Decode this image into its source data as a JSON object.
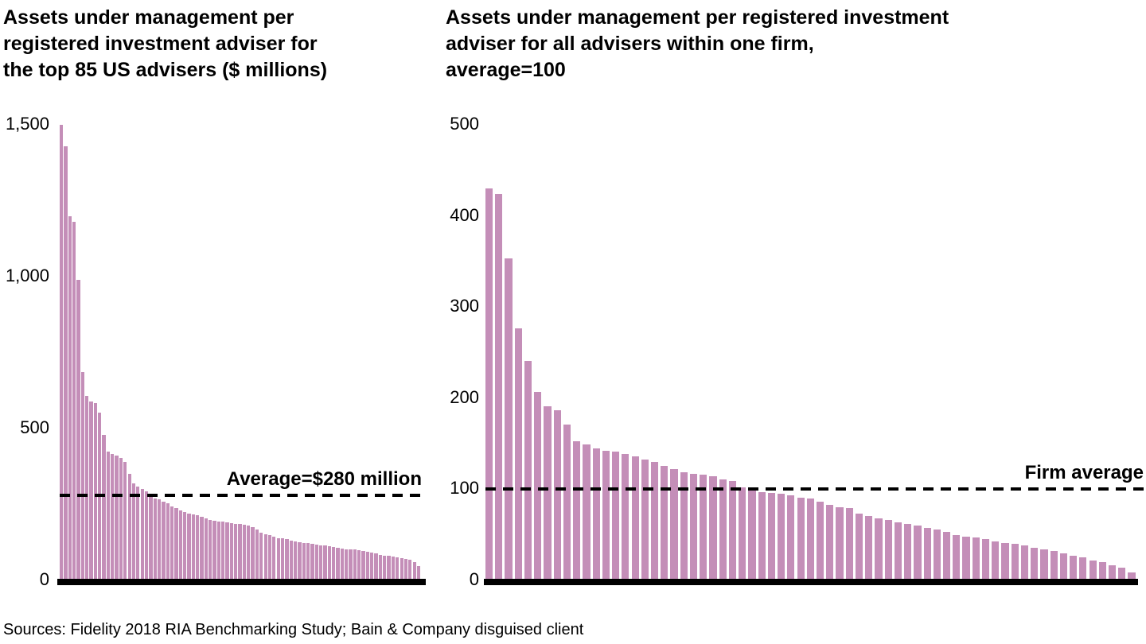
{
  "page": {
    "background": "#ffffff",
    "text_color": "#000000"
  },
  "source_note": "Sources: Fidelity 2018 RIA Benchmarking Study; Bain & Company disguised client",
  "chart_data": [
    {
      "type": "bar",
      "title_lines": [
        "Assets under management per",
        "registered investment adviser for",
        "the top 85 US advisers ($ millions)"
      ],
      "xlabel": "",
      "ylabel": "",
      "ylim": [
        0,
        1500
      ],
      "grid": false,
      "legend": "none",
      "yticks": [
        {
          "label": "1,500",
          "value": 1500
        },
        {
          "label": "1,000",
          "value": 1000
        },
        {
          "label": "500",
          "value": 500
        },
        {
          "label": "0",
          "value": 0
        }
      ],
      "average_line": {
        "value": 280,
        "label": "Average=$280 million",
        "style": "dashed",
        "color": "#000000"
      },
      "bar_color": "#c48eb8",
      "axis_color": "#000000",
      "values": [
        1500,
        1430,
        1200,
        1180,
        990,
        685,
        608,
        588,
        584,
        552,
        478,
        425,
        417,
        410,
        402,
        390,
        350,
        320,
        308,
        300,
        292,
        286,
        270,
        266,
        260,
        253,
        243,
        239,
        230,
        226,
        221,
        217,
        214,
        209,
        204,
        200,
        197,
        195,
        193,
        191,
        189,
        187,
        185,
        183,
        180,
        175,
        168,
        157,
        153,
        149,
        144,
        140,
        139,
        136,
        131,
        128,
        127,
        124,
        123,
        120,
        118,
        116,
        114,
        113,
        110,
        107,
        105,
        103,
        102,
        101,
        100,
        97,
        93,
        91,
        88,
        85,
        82,
        80,
        78,
        76,
        73,
        70,
        67,
        60,
        47
      ]
    },
    {
      "type": "bar",
      "title_lines": [
        "Assets under management per registered investment",
        "adviser for all advisers within one firm,",
        "average=100"
      ],
      "xlabel": "",
      "ylabel": "",
      "ylim": [
        0,
        500
      ],
      "grid": false,
      "legend": "none",
      "yticks": [
        {
          "label": "500",
          "value": 500
        },
        {
          "label": "400",
          "value": 400
        },
        {
          "label": "300",
          "value": 300
        },
        {
          "label": "200",
          "value": 200
        },
        {
          "label": "100",
          "value": 100
        },
        {
          "label": "0",
          "value": 0
        }
      ],
      "average_line": {
        "value": 100,
        "label": "Firm average",
        "style": "dashed",
        "color": "#000000"
      },
      "bar_color": "#c48eb8",
      "axis_color": "#000000",
      "values": [
        430,
        424,
        353,
        277,
        241,
        207,
        191,
        187,
        171,
        153,
        149,
        145,
        142,
        141,
        139,
        136,
        133,
        130,
        126,
        122,
        119,
        117,
        116,
        114,
        111,
        109,
        102,
        100,
        97,
        96,
        95,
        93,
        91,
        90,
        86,
        83,
        80,
        79,
        73,
        71,
        68,
        66,
        64,
        62,
        60,
        58,
        56,
        53,
        50,
        48,
        47,
        45,
        43,
        41,
        40,
        38,
        36,
        34,
        32,
        30,
        27,
        25,
        22,
        20,
        17,
        14,
        9
      ]
    }
  ]
}
